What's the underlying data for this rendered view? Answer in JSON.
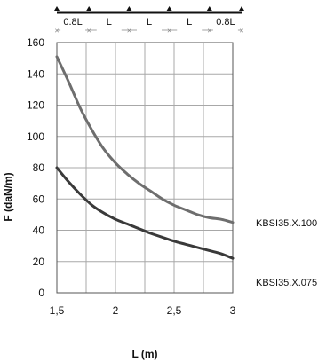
{
  "chart_data": {
    "type": "line",
    "xlabel": "L (m)",
    "ylabel": "F (daN/m)",
    "xlim": [
      1.5,
      3
    ],
    "ylim": [
      0,
      160
    ],
    "xticks": [
      1.5,
      2,
      2.5,
      3
    ],
    "xtick_labels": [
      "1,5",
      "2",
      "2,5",
      "3"
    ],
    "yticks": [
      0,
      20,
      40,
      60,
      80,
      100,
      120,
      140,
      160
    ],
    "ytick_labels": [
      "0",
      "20",
      "40",
      "60",
      "80",
      "100",
      "120",
      "140",
      "160"
    ],
    "grid": true,
    "span_diagram": {
      "segments": [
        "0.8L",
        "L",
        "L",
        "L",
        "0.8L"
      ]
    },
    "series": [
      {
        "name": "KBSI35.X.100",
        "color": "#6e6e6e",
        "x": [
          1.5,
          1.6,
          1.7,
          1.8,
          1.9,
          2.0,
          2.1,
          2.2,
          2.3,
          2.4,
          2.5,
          2.6,
          2.7,
          2.8,
          2.9,
          3.0
        ],
        "y": [
          151,
          135,
          118,
          104,
          92,
          83,
          76,
          70,
          65,
          60,
          56,
          53,
          50,
          48,
          47,
          45
        ]
      },
      {
        "name": "KBSI35.X.075",
        "color": "#3a3a3a",
        "x": [
          1.5,
          1.6,
          1.7,
          1.8,
          1.9,
          2.0,
          2.1,
          2.2,
          2.3,
          2.4,
          2.5,
          2.6,
          2.7,
          2.8,
          2.9,
          3.0
        ],
        "y": [
          80,
          71,
          63,
          56,
          51,
          47,
          44,
          41,
          38,
          35.5,
          33,
          31,
          29,
          27,
          25,
          22
        ]
      }
    ]
  }
}
